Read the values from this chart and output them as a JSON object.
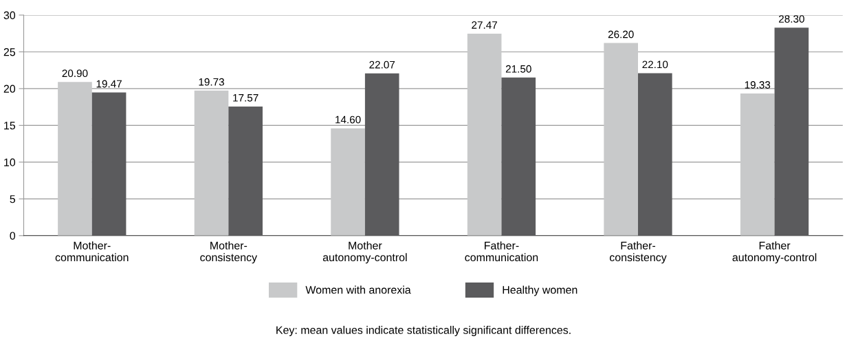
{
  "chart_data": {
    "type": "bar",
    "categories": [
      "Mother-\ncommunication",
      "Mother-\nconsistency",
      "Mother\nautonomy-control",
      "Father-\ncommunication",
      "Father-\nconsistency",
      "Father\nautonomy-control"
    ],
    "series": [
      {
        "name": "Women with anorexia",
        "color": "#c8c9ca",
        "values": [
          20.9,
          19.73,
          14.6,
          27.47,
          26.2,
          19.33
        ],
        "value_labels": [
          "20.90",
          "19.73",
          "14.60",
          "27.47",
          "26.20",
          "19.33"
        ]
      },
      {
        "name": "Healthy women",
        "color": "#5b5b5d",
        "values": [
          19.47,
          17.57,
          22.07,
          21.5,
          22.1,
          28.3
        ],
        "value_labels": [
          "19.47",
          "17.57",
          "22.07",
          "21.50",
          "22.10",
          "28.30"
        ]
      }
    ],
    "ylim": [
      0,
      30
    ],
    "yticks": [
      0,
      5,
      10,
      15,
      20,
      25,
      30
    ],
    "grid": "y",
    "legend": "bottom",
    "annotations": [
      "Key: mean values indicate statistically significant differences."
    ]
  }
}
